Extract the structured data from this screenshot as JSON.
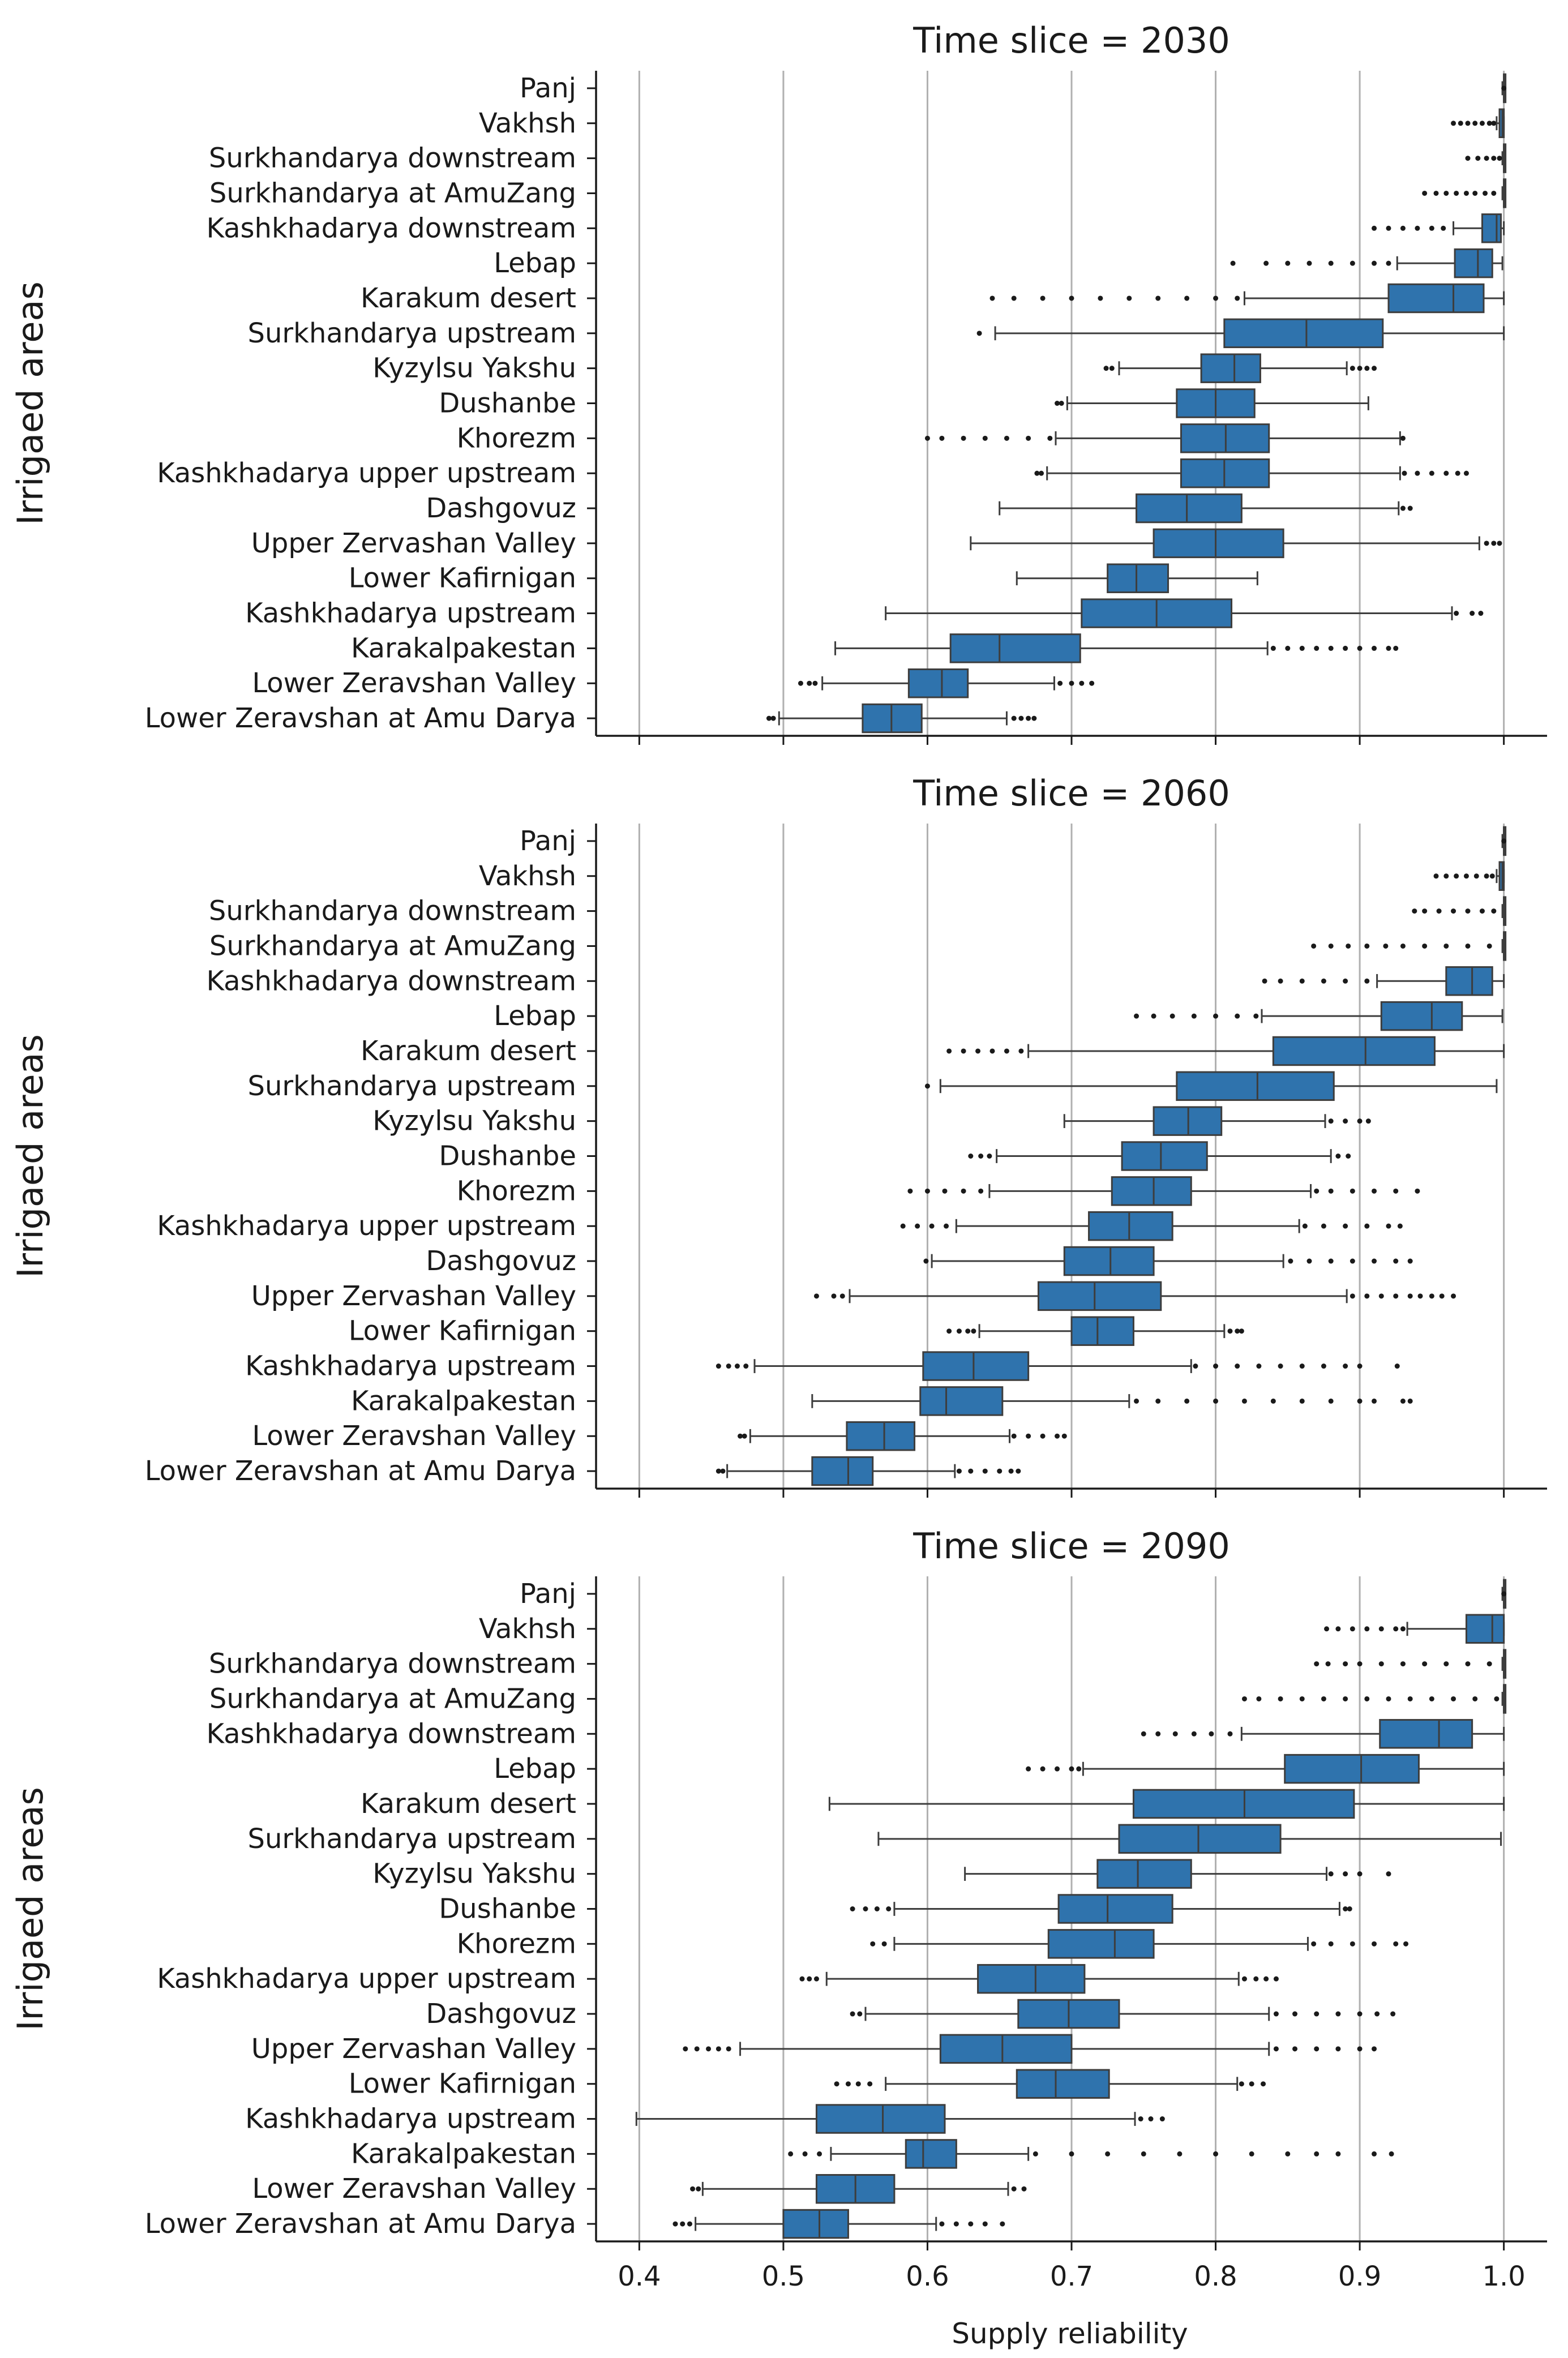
{
  "chart_data": {
    "type": "box",
    "xlabel": "Supply reliability",
    "ylabel": "Irrigaed areas",
    "xlim": [
      0.37,
      1.03
    ],
    "xticks": [
      0.4,
      0.5,
      0.6,
      0.7,
      0.8,
      0.9,
      1.0
    ],
    "xtick_labels": [
      "0.4",
      "0.5",
      "0.6",
      "0.7",
      "0.8",
      "0.9",
      "1.0"
    ],
    "grid": "vertical",
    "box_color": "#2f73ad",
    "categories": [
      "Panj",
      "Vakhsh",
      "Surkhandarya downstream",
      "Surkhandarya at AmuZang",
      "Kashkhadarya downstream",
      "Lebap",
      "Karakum desert",
      "Surkhandarya upstream",
      "Kyzylsu Yakshu",
      "Dushanbe",
      "Khorezm",
      "Kashkhadarya upper upstream",
      "Dashgovuz",
      "Upper Zervashan Valley",
      "Lower Kafirnigan",
      "Kashkhadarya upstream",
      "Karakalpakestan",
      "Lower Zeravshan Valley",
      "Lower Zeravshan at Amu Darya"
    ],
    "panels": [
      {
        "title": "Time slice = 2030",
        "boxes": [
          [
            0.999,
            1.0,
            1.0,
            1.0,
            1.0,
            [
              1.0
            ]
          ],
          [
            0.995,
            0.997,
            0.999,
            1.0,
            1.0,
            [
              0.965,
              0.97,
              0.975,
              0.98,
              0.985,
              0.99,
              0.993
            ]
          ],
          [
            0.999,
            1.0,
            1.0,
            1.0,
            1.0,
            [
              0.975,
              0.982,
              0.988,
              0.993,
              0.997
            ]
          ],
          [
            0.999,
            1.0,
            1.0,
            1.0,
            1.0,
            [
              0.945,
              0.953,
              0.96,
              0.967,
              0.974,
              0.98,
              0.987,
              0.993
            ]
          ],
          [
            0.965,
            0.985,
            0.995,
            0.998,
            1.0,
            [
              0.91,
              0.92,
              0.93,
              0.94,
              0.95,
              0.958
            ]
          ],
          [
            0.926,
            0.966,
            0.982,
            0.992,
            0.999,
            [
              0.812,
              0.835,
              0.85,
              0.865,
              0.88,
              0.895,
              0.91,
              0.92
            ]
          ],
          [
            0.82,
            0.92,
            0.965,
            0.986,
            1.0,
            [
              0.645,
              0.66,
              0.68,
              0.7,
              0.72,
              0.74,
              0.76,
              0.78,
              0.8,
              0.815
            ]
          ],
          [
            0.647,
            0.806,
            0.863,
            0.916,
            1.0,
            [
              0.636
            ]
          ],
          [
            0.733,
            0.79,
            0.813,
            0.831,
            0.891,
            [
              0.724,
              0.728,
              0.895,
              0.9,
              0.905,
              0.91
            ]
          ],
          [
            0.697,
            0.773,
            0.8,
            0.827,
            0.906,
            [
              0.69,
              0.693
            ]
          ],
          [
            0.689,
            0.776,
            0.807,
            0.837,
            0.928,
            [
              0.6,
              0.61,
              0.625,
              0.64,
              0.655,
              0.67,
              0.685,
              0.93
            ]
          ],
          [
            0.683,
            0.776,
            0.806,
            0.837,
            0.928,
            [
              0.676,
              0.679,
              0.931,
              0.94,
              0.95,
              0.96,
              0.968,
              0.974
            ]
          ],
          [
            0.65,
            0.745,
            0.78,
            0.818,
            0.927,
            [
              0.93,
              0.935
            ]
          ],
          [
            0.63,
            0.757,
            0.8,
            0.847,
            0.983,
            [
              0.988,
              0.993,
              0.997
            ]
          ],
          [
            0.662,
            0.725,
            0.745,
            0.767,
            0.829,
            []
          ],
          [
            0.571,
            0.707,
            0.759,
            0.811,
            0.964,
            [
              0.967,
              0.978,
              0.984
            ]
          ],
          [
            0.536,
            0.616,
            0.65,
            0.706,
            0.836,
            [
              0.84,
              0.85,
              0.86,
              0.87,
              0.88,
              0.89,
              0.9,
              0.91,
              0.92,
              0.925
            ]
          ],
          [
            0.527,
            0.587,
            0.61,
            0.628,
            0.688,
            [
              0.512,
              0.518,
              0.522,
              0.692,
              0.7,
              0.707,
              0.714
            ]
          ],
          [
            0.497,
            0.555,
            0.575,
            0.596,
            0.655,
            [
              0.49,
              0.493,
              0.66,
              0.665,
              0.67,
              0.674
            ]
          ]
        ]
      },
      {
        "title": "Time slice = 2060",
        "boxes": [
          [
            0.999,
            1.0,
            1.0,
            1.0,
            1.0,
            [
              1.0
            ]
          ],
          [
            0.995,
            0.997,
            0.999,
            1.0,
            1.0,
            [
              0.953,
              0.96,
              0.967,
              0.974,
              0.981,
              0.988,
              0.992
            ]
          ],
          [
            0.999,
            1.0,
            1.0,
            1.0,
            1.0,
            [
              0.938,
              0.945,
              0.955,
              0.965,
              0.975,
              0.985,
              0.993
            ]
          ],
          [
            0.999,
            1.0,
            1.0,
            1.0,
            1.0,
            [
              0.868,
              0.88,
              0.892,
              0.905,
              0.918,
              0.93,
              0.945,
              0.96,
              0.975,
              0.99
            ]
          ],
          [
            0.912,
            0.96,
            0.978,
            0.992,
            1.0,
            [
              0.834,
              0.845,
              0.86,
              0.875,
              0.89,
              0.905
            ]
          ],
          [
            0.832,
            0.915,
            0.95,
            0.971,
            0.999,
            [
              0.745,
              0.757,
              0.77,
              0.785,
              0.8,
              0.815,
              0.828
            ]
          ],
          [
            0.67,
            0.84,
            0.904,
            0.952,
            1.0,
            [
              0.615,
              0.625,
              0.635,
              0.645,
              0.655,
              0.665
            ]
          ],
          [
            0.609,
            0.773,
            0.829,
            0.882,
            0.995,
            [
              0.6
            ]
          ],
          [
            0.695,
            0.757,
            0.781,
            0.804,
            0.876,
            [
              0.88,
              0.89,
              0.9,
              0.906
            ]
          ],
          [
            0.648,
            0.735,
            0.762,
            0.794,
            0.88,
            [
              0.63,
              0.637,
              0.643,
              0.885,
              0.892
            ]
          ],
          [
            0.643,
            0.728,
            0.757,
            0.783,
            0.866,
            [
              0.588,
              0.6,
              0.612,
              0.625,
              0.637,
              0.87,
              0.88,
              0.895,
              0.91,
              0.925,
              0.94
            ]
          ],
          [
            0.62,
            0.712,
            0.74,
            0.77,
            0.858,
            [
              0.583,
              0.593,
              0.603,
              0.613,
              0.862,
              0.875,
              0.89,
              0.905,
              0.92,
              0.928
            ]
          ],
          [
            0.603,
            0.695,
            0.727,
            0.757,
            0.847,
            [
              0.599,
              0.852,
              0.865,
              0.88,
              0.895,
              0.91,
              0.925,
              0.935
            ]
          ],
          [
            0.546,
            0.677,
            0.716,
            0.762,
            0.891,
            [
              0.523,
              0.535,
              0.541,
              0.895,
              0.905,
              0.915,
              0.925,
              0.935,
              0.942,
              0.95,
              0.957,
              0.965
            ]
          ],
          [
            0.636,
            0.7,
            0.718,
            0.743,
            0.806,
            [
              0.615,
              0.622,
              0.628,
              0.632,
              0.81,
              0.815,
              0.818
            ]
          ],
          [
            0.48,
            0.597,
            0.632,
            0.67,
            0.783,
            [
              0.455,
              0.462,
              0.468,
              0.474,
              0.786,
              0.8,
              0.815,
              0.83,
              0.845,
              0.86,
              0.875,
              0.89,
              0.9,
              0.926
            ]
          ],
          [
            0.52,
            0.595,
            0.613,
            0.652,
            0.74,
            [
              0.745,
              0.76,
              0.78,
              0.8,
              0.82,
              0.84,
              0.86,
              0.88,
              0.9,
              0.91,
              0.93,
              0.935
            ]
          ],
          [
            0.477,
            0.544,
            0.57,
            0.591,
            0.657,
            [
              0.47,
              0.473,
              0.66,
              0.67,
              0.68,
              0.69,
              0.695
            ]
          ],
          [
            0.461,
            0.52,
            0.545,
            0.562,
            0.619,
            [
              0.455,
              0.458,
              0.622,
              0.63,
              0.64,
              0.65,
              0.658,
              0.663
            ]
          ]
        ]
      },
      {
        "title": "Time slice = 2090",
        "boxes": [
          [
            0.999,
            1.0,
            1.0,
            1.0,
            1.0,
            [
              1.0
            ]
          ],
          [
            0.933,
            0.974,
            0.992,
            1.0,
            1.0,
            [
              0.877,
              0.885,
              0.895,
              0.905,
              0.915,
              0.925,
              0.93
            ]
          ],
          [
            0.999,
            1.0,
            1.0,
            1.0,
            1.0,
            [
              0.87,
              0.878,
              0.89,
              0.9,
              0.915,
              0.93,
              0.945,
              0.96,
              0.975,
              0.99
            ]
          ],
          [
            0.999,
            1.0,
            1.0,
            1.0,
            1.0,
            [
              0.82,
              0.83,
              0.845,
              0.86,
              0.875,
              0.89,
              0.905,
              0.92,
              0.935,
              0.95,
              0.965,
              0.98,
              0.995
            ]
          ],
          [
            0.818,
            0.914,
            0.955,
            0.978,
            1.0,
            [
              0.75,
              0.76,
              0.772,
              0.785,
              0.797,
              0.81
            ]
          ],
          [
            0.708,
            0.848,
            0.901,
            0.941,
            1.0,
            [
              0.67,
              0.68,
              0.69,
              0.7,
              0.705
            ]
          ],
          [
            0.532,
            0.743,
            0.82,
            0.896,
            1.0,
            []
          ],
          [
            0.566,
            0.733,
            0.788,
            0.845,
            0.998,
            []
          ],
          [
            0.626,
            0.718,
            0.746,
            0.783,
            0.877,
            [
              0.88,
              0.89,
              0.9,
              0.92
            ]
          ],
          [
            0.577,
            0.691,
            0.725,
            0.77,
            0.886,
            [
              0.548,
              0.557,
              0.565,
              0.573,
              0.89,
              0.893
            ]
          ],
          [
            0.577,
            0.684,
            0.73,
            0.757,
            0.864,
            [
              0.562,
              0.57,
              0.868,
              0.88,
              0.895,
              0.91,
              0.925,
              0.932
            ]
          ],
          [
            0.53,
            0.635,
            0.675,
            0.709,
            0.816,
            [
              0.513,
              0.518,
              0.523,
              0.82,
              0.828,
              0.835,
              0.842
            ]
          ],
          [
            0.557,
            0.663,
            0.698,
            0.733,
            0.837,
            [
              0.548,
              0.553,
              0.842,
              0.855,
              0.87,
              0.885,
              0.9,
              0.912,
              0.923
            ]
          ],
          [
            0.47,
            0.609,
            0.652,
            0.7,
            0.837,
            [
              0.432,
              0.44,
              0.448,
              0.455,
              0.462,
              0.842,
              0.855,
              0.87,
              0.885,
              0.9,
              0.91
            ]
          ],
          [
            0.571,
            0.662,
            0.689,
            0.726,
            0.815,
            [
              0.537,
              0.545,
              0.552,
              0.56,
              0.818,
              0.825,
              0.833
            ]
          ],
          [
            0.398,
            0.523,
            0.569,
            0.612,
            0.744,
            [
              0.748,
              0.755,
              0.763
            ]
          ],
          [
            0.533,
            0.585,
            0.597,
            0.62,
            0.67,
            [
              0.505,
              0.515,
              0.525,
              0.675,
              0.7,
              0.725,
              0.75,
              0.775,
              0.8,
              0.825,
              0.85,
              0.87,
              0.885,
              0.91,
              0.922
            ]
          ],
          [
            0.444,
            0.523,
            0.55,
            0.577,
            0.656,
            [
              0.437,
              0.441,
              0.66,
              0.667
            ]
          ],
          [
            0.439,
            0.5,
            0.525,
            0.545,
            0.606,
            [
              0.425,
              0.43,
              0.435,
              0.61,
              0.62,
              0.63,
              0.64,
              0.652
            ]
          ]
        ]
      }
    ]
  }
}
